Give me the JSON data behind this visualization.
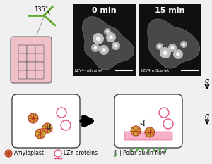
{
  "background_color": "#f0f0f0",
  "title_0min": "0 min",
  "title_15min": "15 min",
  "label_lzy": "LZY4-mScarlet",
  "angle_label": "135°",
  "g_label": "g",
  "legend_amyloplast": "Amyloplast",
  "legend_lzy": "LZY proteins",
  "legend_auxin": "| Polar auxin flow",
  "cell_fill": "#ffffff",
  "cell_stroke": "#444444",
  "amyloplast_fill": "#c8a832",
  "amyloplast_cross": "#c0392b",
  "lzy_ring_color": "#e05080",
  "lzy_membrane_color": "#e0205a",
  "auxin_arrow_color": "#4aaa44",
  "root_fill": "#f0c0c8",
  "root_stroke": "#666666",
  "stem_color": "#60aa30",
  "panel_bg": "#101010"
}
